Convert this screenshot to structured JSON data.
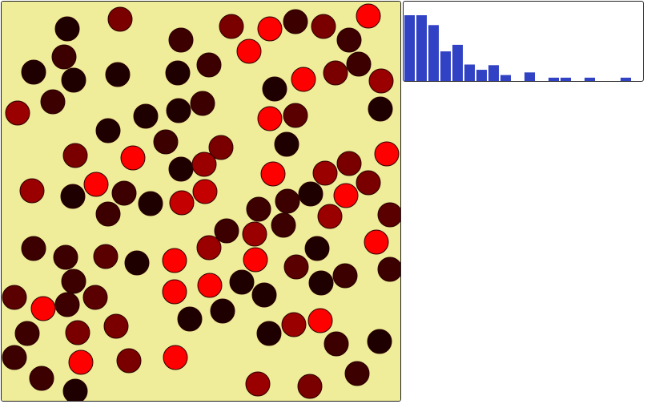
{
  "simulation": {
    "background": "#efed9a",
    "border_color": "#222222",
    "disc_count": 90,
    "heat_palette": [
      "#1f0000",
      "#3c0000",
      "#5a0000",
      "#7a0000",
      "#9a0000",
      "#c40000",
      "#ff0000"
    ]
  },
  "histogram": {
    "bar_color": "#3142c4",
    "background": "#ffffff",
    "bin_counts": [
      10,
      10,
      8.5,
      4.5,
      5.5,
      2.5,
      1.7,
      2.4,
      0.9,
      0,
      1.3,
      0,
      0.5,
      0.5,
      0,
      0.5,
      0,
      0,
      0.5
    ]
  }
}
